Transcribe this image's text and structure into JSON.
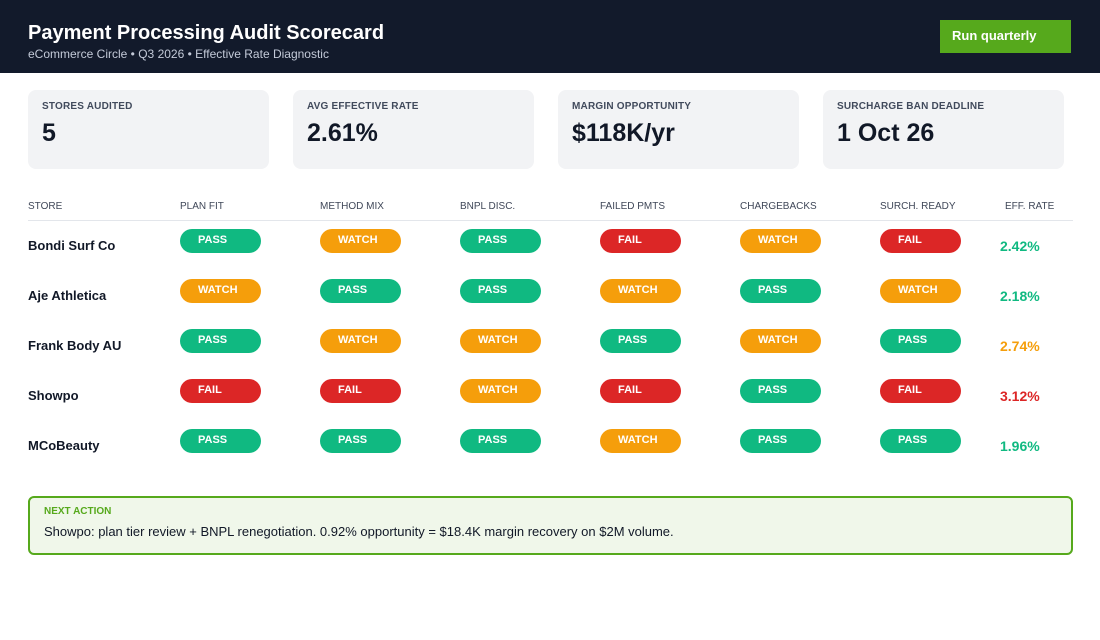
{
  "header": {
    "title": "Payment Processing Audit Scorecard",
    "subtitle": "eCommerce Circle • Q3 2026 • Effective Rate Diagnostic",
    "button_label": "Run quarterly"
  },
  "kpis": [
    {
      "label": "STORES AUDITED",
      "value": "5"
    },
    {
      "label": "AVG EFFECTIVE RATE",
      "value": "2.61%"
    },
    {
      "label": "MARGIN OPPORTUNITY",
      "value": "$118K/yr"
    },
    {
      "label": "SURCHARGE BAN DEADLINE",
      "value": "1 Oct 26"
    }
  ],
  "table": {
    "columns": [
      "STORE",
      "PLAN FIT",
      "METHOD MIX",
      "BNPL DISC.",
      "FAILED PMTS",
      "CHARGEBACKS",
      "SURCH. READY",
      "EFF. RATE"
    ],
    "rows": [
      {
        "store": "Bondi Surf Co",
        "checks": [
          "PASS",
          "WATCH",
          "PASS",
          "FAIL",
          "WATCH",
          "FAIL"
        ],
        "rate": "2.42%",
        "rate_status": "good"
      },
      {
        "store": "Aje Athletica",
        "checks": [
          "WATCH",
          "PASS",
          "PASS",
          "WATCH",
          "PASS",
          "WATCH"
        ],
        "rate": "2.18%",
        "rate_status": "good"
      },
      {
        "store": "Frank Body AU",
        "checks": [
          "PASS",
          "WATCH",
          "WATCH",
          "PASS",
          "WATCH",
          "PASS"
        ],
        "rate": "2.74%",
        "rate_status": "watch"
      },
      {
        "store": "Showpo",
        "checks": [
          "FAIL",
          "FAIL",
          "WATCH",
          "FAIL",
          "PASS",
          "FAIL"
        ],
        "rate": "3.12%",
        "rate_status": "bad"
      },
      {
        "store": "MCoBeauty",
        "checks": [
          "PASS",
          "PASS",
          "PASS",
          "WATCH",
          "PASS",
          "PASS"
        ],
        "rate": "1.96%",
        "rate_status": "good"
      }
    ]
  },
  "next_action": {
    "label": "NEXT ACTION",
    "text": "Showpo: plan tier review + BNPL renegotiation. 0.92% opportunity = $18.4K margin recovery on $2M volume."
  },
  "colors": {
    "header_bg": "#121a2b",
    "accent": "#56a91c",
    "pass": "#10b981",
    "watch": "#f59e0b",
    "fail": "#dc2626",
    "rate_good": "#10b981",
    "rate_watch": "#f59e0b",
    "rate_bad": "#dc2626"
  }
}
